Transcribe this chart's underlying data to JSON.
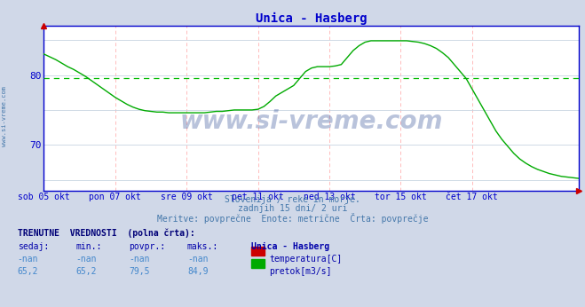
{
  "title": "Unica - Hasberg",
  "title_color": "#0000cc",
  "bg_color": "#d0d8e8",
  "plot_bg_color": "#ffffff",
  "grid_color_h": "#c8d4e0",
  "grid_color_v": "#ffbbbb",
  "avg_line_color": "#00bb00",
  "avg_line_value": 79.5,
  "line_color": "#00aa00",
  "axis_color": "#0000cc",
  "tick_color": "#0000cc",
  "xlim": [
    0,
    180
  ],
  "ylim": [
    63.5,
    87
  ],
  "yticks": [
    70,
    80
  ],
  "xtick_labels": [
    "sob 05 okt",
    "pon 07 okt",
    "sre 09 okt",
    "pet 11 okt",
    "ned 13 okt",
    "tor 15 okt",
    "čet 17 okt"
  ],
  "xtick_positions": [
    0,
    24,
    48,
    72,
    96,
    120,
    144
  ],
  "subtitle1": "Slovenija / reke in morje.",
  "subtitle2": "zadnjih 15 dni/ 2 uri",
  "subtitle3": "Meritve: povprečne  Enote: metrične  Črta: povprečje",
  "subtitle_color": "#4477aa",
  "watermark": "www.si-vreme.com",
  "watermark_color": "#1a3a8a",
  "watermark_alpha": 0.3,
  "sidebar_text": "www.si-vreme.com",
  "sidebar_color": "#4477aa",
  "footer_label": "TRENUTNE  VREDNOSTI  (polna črta):",
  "footer_cols": [
    "sedaj:",
    "min.:",
    "povpr.:",
    "maks.:",
    "Unica - Hasberg"
  ],
  "footer_row1": [
    "-nan",
    "-nan",
    "-nan",
    "-nan",
    "temperatura[C]"
  ],
  "footer_row2": [
    "65,2",
    "65,2",
    "79,5",
    "84,9",
    "pretok[m3/s]"
  ],
  "legend_colors": [
    "#cc0000",
    "#00aa00"
  ],
  "flow_data_x": [
    0,
    2,
    4,
    6,
    8,
    10,
    12,
    14,
    16,
    18,
    20,
    22,
    24,
    26,
    28,
    30,
    32,
    34,
    36,
    38,
    40,
    42,
    44,
    46,
    48,
    50,
    52,
    54,
    56,
    58,
    60,
    62,
    64,
    66,
    68,
    70,
    72,
    74,
    76,
    78,
    80,
    82,
    84,
    86,
    88,
    90,
    92,
    94,
    96,
    98,
    100,
    102,
    104,
    106,
    108,
    110,
    112,
    114,
    116,
    118,
    120,
    122,
    124,
    126,
    128,
    130,
    132,
    134,
    136,
    138,
    140,
    142,
    144,
    146,
    148,
    150,
    152,
    154,
    156,
    158,
    160,
    162,
    164,
    166,
    168,
    170,
    172,
    174,
    176,
    178,
    180
  ],
  "flow_data_y": [
    83.0,
    82.6,
    82.2,
    81.7,
    81.2,
    80.8,
    80.3,
    79.8,
    79.2,
    78.6,
    78.0,
    77.4,
    76.8,
    76.3,
    75.8,
    75.4,
    75.1,
    74.9,
    74.8,
    74.7,
    74.7,
    74.6,
    74.6,
    74.6,
    74.6,
    74.6,
    74.6,
    74.6,
    74.7,
    74.8,
    74.8,
    74.9,
    75.0,
    75.0,
    75.0,
    75.0,
    75.1,
    75.5,
    76.2,
    77.0,
    77.5,
    78.0,
    78.5,
    79.5,
    80.5,
    81.0,
    81.2,
    81.2,
    81.2,
    81.3,
    81.5,
    82.5,
    83.5,
    84.2,
    84.7,
    84.9,
    84.9,
    84.9,
    84.9,
    84.9,
    84.9,
    84.9,
    84.8,
    84.7,
    84.5,
    84.2,
    83.8,
    83.2,
    82.5,
    81.5,
    80.5,
    79.5,
    78.0,
    76.5,
    75.0,
    73.5,
    72.0,
    70.8,
    69.8,
    68.8,
    68.0,
    67.4,
    66.9,
    66.5,
    66.2,
    65.9,
    65.7,
    65.5,
    65.4,
    65.3,
    65.2
  ]
}
